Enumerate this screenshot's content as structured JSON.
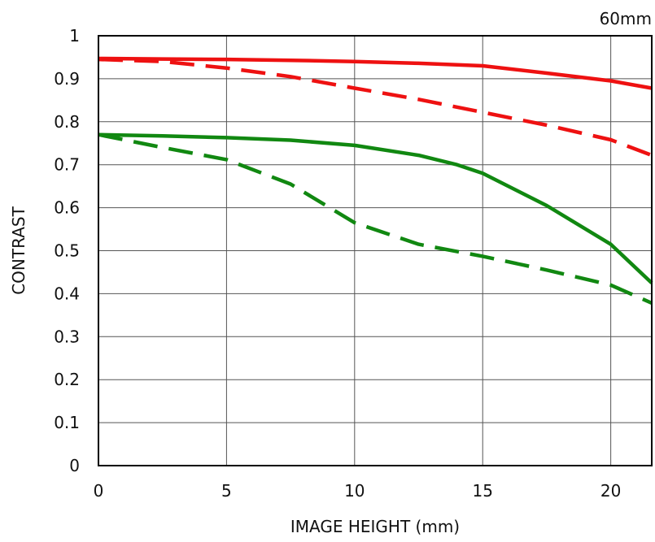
{
  "chart_data": {
    "type": "line",
    "title": "",
    "annotation": "60mm",
    "xlabel": "IMAGE HEIGHT (mm)",
    "ylabel": "CONTRAST",
    "xlim": [
      0,
      21.6
    ],
    "ylim": [
      0,
      1
    ],
    "x_ticks": [
      0,
      5,
      10,
      15,
      20
    ],
    "x_tick_labels": [
      "0",
      "5",
      "10",
      "15",
      "20"
    ],
    "y_ticks": [
      0,
      0.1,
      0.2,
      0.3,
      0.4,
      0.5,
      0.6,
      0.7,
      0.8,
      0.9,
      1
    ],
    "y_tick_labels": [
      "0",
      "0.1",
      "0.2",
      "0.3",
      "0.4",
      "0.5",
      "0.6",
      "0.7",
      "0.8",
      "0.9",
      "1"
    ],
    "grid": true,
    "legend": "none",
    "series": [
      {
        "color": "#ee1111",
        "style": "solid",
        "x": [
          0,
          2.5,
          5,
          7.5,
          10,
          12.5,
          15,
          17.5,
          20,
          21.6
        ],
        "y": [
          0.947,
          0.946,
          0.945,
          0.943,
          0.94,
          0.936,
          0.93,
          0.913,
          0.895,
          0.878
        ]
      },
      {
        "color": "#ee1111",
        "style": "dashed",
        "x": [
          0,
          2.5,
          5,
          7.5,
          10,
          12.5,
          15,
          17.5,
          20,
          21.6
        ],
        "y": [
          0.945,
          0.94,
          0.925,
          0.905,
          0.878,
          0.852,
          0.822,
          0.792,
          0.758,
          0.722
        ]
      },
      {
        "color": "#118811",
        "style": "solid",
        "x": [
          0,
          2.5,
          5,
          7.5,
          10,
          12.5,
          14,
          15,
          17.5,
          20,
          21.6
        ],
        "y": [
          0.77,
          0.767,
          0.763,
          0.757,
          0.745,
          0.722,
          0.7,
          0.68,
          0.605,
          0.515,
          0.425
        ]
      },
      {
        "color": "#118811",
        "style": "dashed",
        "x": [
          0,
          2.5,
          5,
          7.5,
          10,
          12.5,
          15,
          17.5,
          20,
          21.6
        ],
        "y": [
          0.77,
          0.74,
          0.712,
          0.655,
          0.565,
          0.515,
          0.487,
          0.455,
          0.42,
          0.378
        ]
      }
    ]
  }
}
